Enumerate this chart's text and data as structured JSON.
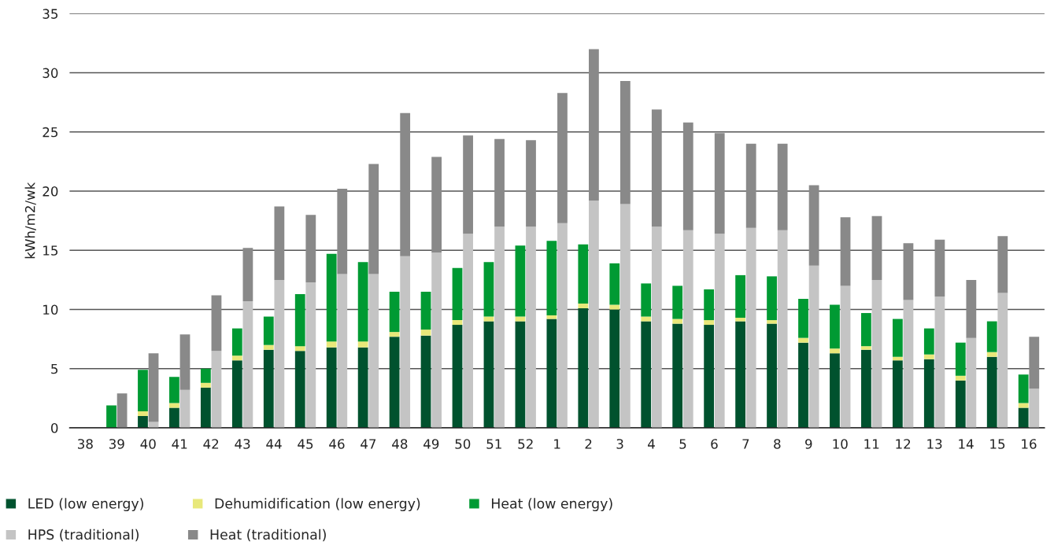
{
  "chart_data": [
    {
      "type": "bar",
      "stacked": true,
      "ylabel": "kWh/m2/wk",
      "categories": [
        "38",
        "39",
        "40",
        "41",
        "42",
        "43",
        "44",
        "45",
        "46",
        "47",
        "48",
        "49",
        "50",
        "51",
        "52",
        "1",
        "2",
        "3",
        "4",
        "5",
        "6",
        "7",
        "8",
        "9",
        "10",
        "11",
        "12",
        "13",
        "14",
        "15",
        "16"
      ],
      "series": [
        {
          "name": "LED (low energy)",
          "color": "#00522e",
          "values": [
            0,
            0,
            1.0,
            1.7,
            3.4,
            5.7,
            6.6,
            6.5,
            6.8,
            6.8,
            7.7,
            7.8,
            8.7,
            9.0,
            9.0,
            9.2,
            10.1,
            10.0,
            9.0,
            8.8,
            8.7,
            9.0,
            8.8,
            7.2,
            6.3,
            6.6,
            5.7,
            5.8,
            4.0,
            6.0,
            1.7
          ]
        },
        {
          "name": "Dehumidification (low energy)",
          "color": "#e8e87a",
          "values": [
            0,
            0,
            0.4,
            0.4,
            0.4,
            0.4,
            0.4,
            0.4,
            0.5,
            0.5,
            0.4,
            0.5,
            0.4,
            0.4,
            0.4,
            0.3,
            0.4,
            0.4,
            0.4,
            0.4,
            0.4,
            0.3,
            0.3,
            0.4,
            0.4,
            0.3,
            0.3,
            0.4,
            0.4,
            0.4,
            0.4
          ]
        },
        {
          "name": "Heat (low energy)",
          "color": "#009a33",
          "values": [
            0,
            1.9,
            3.5,
            2.2,
            1.2,
            2.3,
            2.4,
            4.4,
            7.4,
            6.7,
            3.4,
            3.2,
            4.4,
            4.6,
            6.0,
            6.3,
            5.0,
            3.5,
            2.8,
            2.8,
            2.6,
            3.6,
            3.7,
            3.3,
            3.7,
            2.8,
            3.2,
            2.2,
            2.8,
            2.6,
            2.4
          ]
        }
      ],
      "ylim": [
        0,
        35
      ],
      "yticks": [
        0,
        5,
        10,
        15,
        20,
        25,
        30,
        35
      ],
      "grid": "y",
      "legend": "bottom left"
    },
    {
      "type": "bar",
      "stacked": true,
      "categories": [
        "38",
        "39",
        "40",
        "41",
        "42",
        "43",
        "44",
        "45",
        "46",
        "47",
        "48",
        "49",
        "50",
        "51",
        "52",
        "1",
        "2",
        "3",
        "4",
        "5",
        "6",
        "7",
        "8",
        "9",
        "10",
        "11",
        "12",
        "13",
        "14",
        "15",
        "16"
      ],
      "series": [
        {
          "name": "HPS (traditional)",
          "color": "#c4c4c4",
          "values": [
            0,
            0,
            0.5,
            3.2,
            6.5,
            10.7,
            12.5,
            12.3,
            13.0,
            13.0,
            14.5,
            14.8,
            16.4,
            17.0,
            17.0,
            17.3,
            19.2,
            18.9,
            17.0,
            16.7,
            16.4,
            16.9,
            16.7,
            13.7,
            12.0,
            12.5,
            10.8,
            11.1,
            7.6,
            11.4,
            3.3
          ]
        },
        {
          "name": "Heat (traditional)",
          "color": "#898989",
          "values": [
            0,
            2.9,
            5.8,
            4.7,
            4.7,
            4.5,
            6.2,
            5.7,
            7.2,
            9.3,
            12.1,
            8.1,
            8.3,
            7.4,
            7.3,
            11.0,
            12.8,
            10.4,
            9.9,
            9.1,
            8.5,
            7.1,
            7.3,
            6.8,
            5.8,
            5.4,
            4.8,
            4.8,
            4.9,
            4.8,
            4.4
          ]
        }
      ],
      "ylim": [
        0,
        35
      ],
      "yticks": [
        0,
        5,
        10,
        15,
        20,
        25,
        30,
        35
      ],
      "tick_labels": false,
      "legend": "bottom left"
    }
  ]
}
